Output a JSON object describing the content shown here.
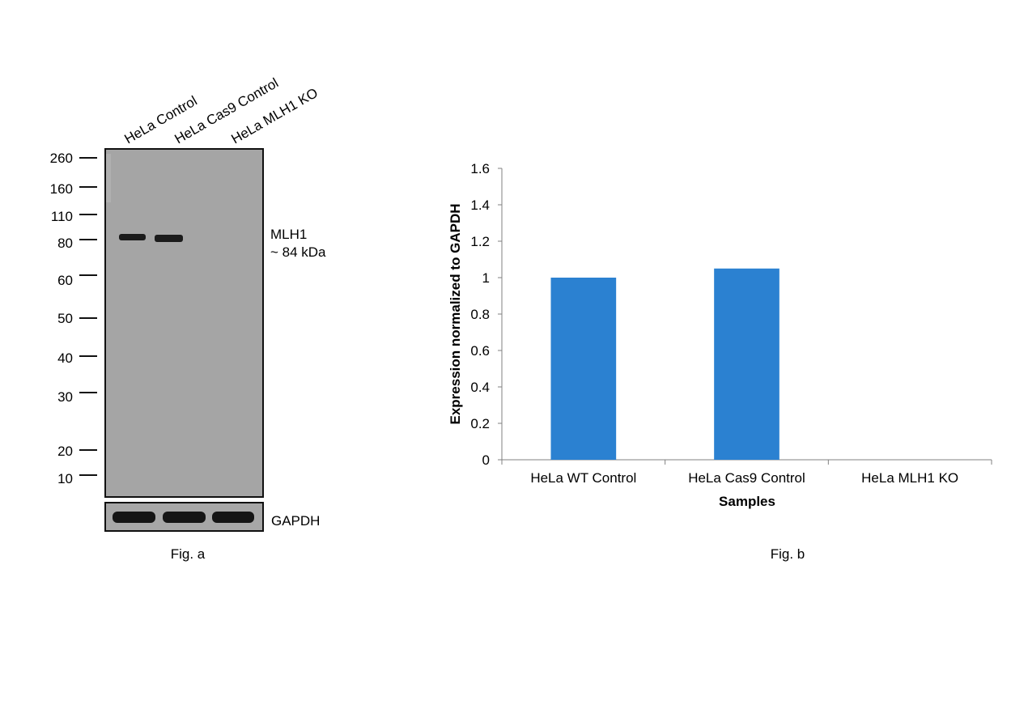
{
  "western_blot": {
    "lanes": [
      "HeLa Control",
      "HeLa Cas9 Control",
      "HeLa MLH1 KO"
    ],
    "markers": [
      "260",
      "160",
      "110",
      "80",
      "60",
      "50",
      "40",
      "30",
      "20",
      "10"
    ],
    "band_label": "MLH1",
    "band_size": "~ 84 kDa",
    "loading_control": "GAPDH",
    "mlh1_band_present": [
      true,
      true,
      false
    ],
    "gapdh_band_present": [
      true,
      true,
      true
    ],
    "caption": "Fig. a"
  },
  "chart_data": {
    "type": "bar",
    "categories": [
      "HeLa WT Control",
      "HeLa Cas9 Control",
      "HeLa MLH1 KO"
    ],
    "values": [
      1.0,
      1.05,
      0.0
    ],
    "xlabel": "Samples",
    "ylabel": "Expression normalized to GAPDH",
    "ylim": [
      0,
      1.6
    ],
    "yticks": [
      "0",
      "0.2",
      "0.4",
      "0.6",
      "0.8",
      "1",
      "1.2",
      "1.4",
      "1.6"
    ],
    "bar_color": "#2b81d1",
    "grid": false,
    "legend": "none",
    "caption": "Fig. b"
  }
}
